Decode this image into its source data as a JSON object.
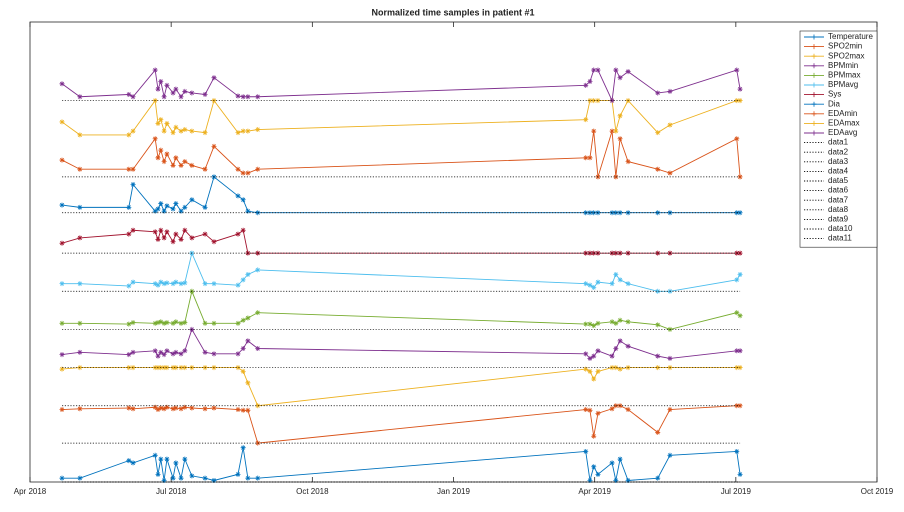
{
  "chart_data": {
    "type": "line",
    "title": "Normalized time samples in patient #1",
    "xlim": [
      0,
      18
    ],
    "xticks": [
      {
        "value": 0,
        "label": "Apr 2018"
      },
      {
        "value": 3,
        "label": "Jul 2018"
      },
      {
        "value": 6,
        "label": "Oct 2018"
      },
      {
        "value": 9,
        "label": "Jan 2019"
      },
      {
        "value": 12,
        "label": "Apr 2019"
      },
      {
        "value": 15,
        "label": "Jul 2019"
      },
      {
        "value": 18,
        "label": "Oct 2019"
      }
    ],
    "ylim": [
      0,
      6.03
    ],
    "legend": "upper right",
    "x": [
      0.68,
      1.06,
      2.1,
      2.19,
      2.66,
      2.72,
      2.78,
      2.85,
      2.91,
      3.04,
      3.1,
      3.21,
      3.29,
      3.44,
      3.72,
      3.91,
      4.42,
      4.53,
      4.63,
      4.84,
      11.81,
      11.9,
      11.98,
      12.07,
      12.37,
      12.45,
      12.54,
      12.71,
      13.34,
      13.6,
      15.02,
      15.09
    ],
    "series": [
      {
        "name": "Temperature",
        "color": "#0072BD",
        "values": [
          0.05,
          0.05,
          0.28,
          0.25,
          0.35,
          0.1,
          0.3,
          0.02,
          0.3,
          0.05,
          0.25,
          0.05,
          0.3,
          0.08,
          0.05,
          0.02,
          0.1,
          0.45,
          0.05,
          0.05,
          0.4,
          0.02,
          0.2,
          0.1,
          0.25,
          0.02,
          0.3,
          0.02,
          0.05,
          0.35,
          0.4,
          0.1
        ]
      },
      {
        "name": "SPO2min",
        "color": "#D95319",
        "values": [
          0.95,
          0.96,
          0.97,
          0.96,
          0.98,
          0.95,
          0.97,
          0.96,
          0.98,
          0.96,
          0.97,
          0.96,
          0.98,
          0.97,
          0.96,
          0.97,
          0.95,
          0.94,
          0.94,
          0.51,
          0.95,
          0.94,
          0.6,
          0.9,
          0.96,
          1.0,
          1.0,
          0.95,
          0.65,
          0.95,
          1.0,
          1.0
        ]
      },
      {
        "name": "SPO2max",
        "color": "#EDB120",
        "values": [
          1.48,
          1.5,
          1.5,
          1.5,
          1.5,
          1.5,
          1.5,
          1.5,
          1.5,
          1.5,
          1.5,
          1.5,
          1.5,
          1.5,
          1.5,
          1.5,
          1.5,
          1.45,
          1.3,
          1.0,
          1.48,
          1.45,
          1.35,
          1.45,
          1.5,
          1.5,
          1.48,
          1.5,
          1.5,
          1.5,
          1.5,
          1.5
        ]
      },
      {
        "name": "BPMmin",
        "color": "#7E2F8E",
        "values": [
          1.67,
          1.7,
          1.67,
          1.7,
          1.72,
          1.65,
          1.7,
          1.67,
          1.72,
          1.68,
          1.7,
          1.68,
          1.72,
          2.0,
          1.7,
          1.68,
          1.68,
          1.75,
          1.85,
          1.75,
          1.68,
          1.62,
          1.65,
          1.72,
          1.65,
          1.75,
          1.85,
          1.78,
          1.65,
          1.62,
          1.72,
          1.72
        ]
      },
      {
        "name": "BPMmax",
        "color": "#77AC30",
        "values": [
          2.08,
          2.08,
          2.07,
          2.09,
          2.08,
          2.09,
          2.1,
          2.08,
          2.09,
          2.08,
          2.1,
          2.08,
          2.09,
          2.5,
          2.08,
          2.08,
          2.08,
          2.12,
          2.15,
          2.22,
          2.07,
          2.07,
          2.05,
          2.08,
          2.1,
          2.08,
          2.12,
          2.1,
          2.06,
          2.0,
          2.22,
          2.18
        ]
      },
      {
        "name": "BPMavg",
        "color": "#4DBEEE",
        "values": [
          2.6,
          2.6,
          2.57,
          2.62,
          2.6,
          2.58,
          2.62,
          2.6,
          2.61,
          2.6,
          2.62,
          2.6,
          2.61,
          3.0,
          2.6,
          2.6,
          2.58,
          2.65,
          2.72,
          2.78,
          2.6,
          2.58,
          2.55,
          2.62,
          2.6,
          2.72,
          2.65,
          2.6,
          2.5,
          2.5,
          2.65,
          2.72
        ]
      },
      {
        "name": "Sys",
        "color": "#A2142F",
        "values": [
          3.13,
          3.2,
          3.25,
          3.3,
          3.28,
          3.18,
          3.3,
          3.2,
          3.28,
          3.15,
          3.25,
          3.18,
          3.3,
          3.2,
          3.25,
          3.15,
          3.25,
          3.3,
          3.0,
          3.0,
          3.0,
          3.0,
          3.0,
          3.0,
          3.0,
          3.0,
          3.0,
          3.0,
          3.0,
          3.0,
          3.0,
          3.0
        ]
      },
      {
        "name": "Dia",
        "color": "#0072BD",
        "values": [
          3.63,
          3.6,
          3.6,
          3.9,
          3.55,
          3.58,
          3.65,
          3.55,
          3.62,
          3.58,
          3.65,
          3.55,
          3.6,
          3.7,
          3.6,
          4.0,
          3.75,
          3.7,
          3.55,
          3.53,
          3.53,
          3.53,
          3.53,
          3.53,
          3.53,
          3.53,
          3.53,
          3.53,
          3.53,
          3.53,
          3.53,
          3.53
        ]
      },
      {
        "name": "EDAmin",
        "color": "#D95319",
        "values": [
          4.22,
          4.1,
          4.1,
          4.1,
          4.5,
          4.25,
          4.35,
          4.2,
          4.3,
          4.15,
          4.25,
          4.15,
          4.2,
          4.15,
          4.1,
          4.4,
          4.1,
          4.05,
          4.05,
          4.1,
          4.25,
          4.25,
          4.6,
          4.0,
          4.6,
          4.0,
          4.5,
          4.2,
          4.1,
          4.05,
          4.5,
          4.0
        ]
      },
      {
        "name": "EDAmax",
        "color": "#EDB120",
        "values": [
          4.72,
          4.55,
          4.55,
          4.6,
          5.0,
          4.7,
          4.75,
          4.6,
          4.7,
          4.58,
          4.65,
          4.6,
          4.62,
          4.6,
          4.58,
          5.0,
          4.58,
          4.6,
          4.6,
          4.62,
          4.75,
          5.0,
          5.0,
          5.0,
          5.0,
          4.6,
          4.8,
          5.0,
          4.58,
          4.68,
          5.0,
          5.0
        ]
      },
      {
        "name": "EDAavg",
        "color": "#7E2F8E",
        "values": [
          5.22,
          5.05,
          5.08,
          5.05,
          5.4,
          5.15,
          5.25,
          5.05,
          5.2,
          5.1,
          5.15,
          5.05,
          5.12,
          5.1,
          5.08,
          5.3,
          5.06,
          5.05,
          5.05,
          5.05,
          5.2,
          5.25,
          5.4,
          5.4,
          5.0,
          5.4,
          5.3,
          5.38,
          5.1,
          5.12,
          5.4,
          5.15
        ]
      },
      {
        "name": "data1",
        "color": "#000000",
        "style": "dotted",
        "x": [
          0.68,
          15.09
        ],
        "values": [
          5.0,
          5.0
        ]
      },
      {
        "name": "data2",
        "color": "#000000",
        "style": "dotted",
        "x": [
          0.68,
          15.09
        ],
        "values": [
          4.0,
          4.0
        ]
      },
      {
        "name": "data3",
        "color": "#000000",
        "style": "dotted",
        "x": [
          0.68,
          15.09
        ],
        "values": [
          3.53,
          3.53
        ]
      },
      {
        "name": "data4",
        "color": "#000000",
        "style": "dotted",
        "x": [
          0.68,
          15.09
        ],
        "values": [
          3.0,
          3.0
        ]
      },
      {
        "name": "data5",
        "color": "#000000",
        "style": "dotted",
        "x": [
          0.68,
          15.09
        ],
        "values": [
          2.5,
          2.5
        ]
      },
      {
        "name": "data6",
        "color": "#000000",
        "style": "dotted",
        "x": [
          0.68,
          15.09
        ],
        "values": [
          2.0,
          2.0
        ]
      },
      {
        "name": "data7",
        "color": "#000000",
        "style": "dotted",
        "x": [
          0.68,
          15.09
        ],
        "values": [
          1.5,
          1.5
        ]
      },
      {
        "name": "data8",
        "color": "#000000",
        "style": "dotted",
        "x": [
          0.68,
          15.09
        ],
        "values": [
          1.0,
          1.0
        ]
      },
      {
        "name": "data9",
        "color": "#000000",
        "style": "dotted",
        "x": [
          0.68,
          15.09
        ],
        "values": [
          0.51,
          0.51
        ]
      },
      {
        "name": "data10",
        "color": "#000000",
        "style": "dotted",
        "x": [
          0.68,
          15.09
        ],
        "values": [
          0,
          0
        ]
      },
      {
        "name": "data11",
        "color": "#000000",
        "style": "dotted",
        "x": [
          0.68,
          15.09
        ],
        "values": [
          0,
          0
        ]
      }
    ]
  }
}
